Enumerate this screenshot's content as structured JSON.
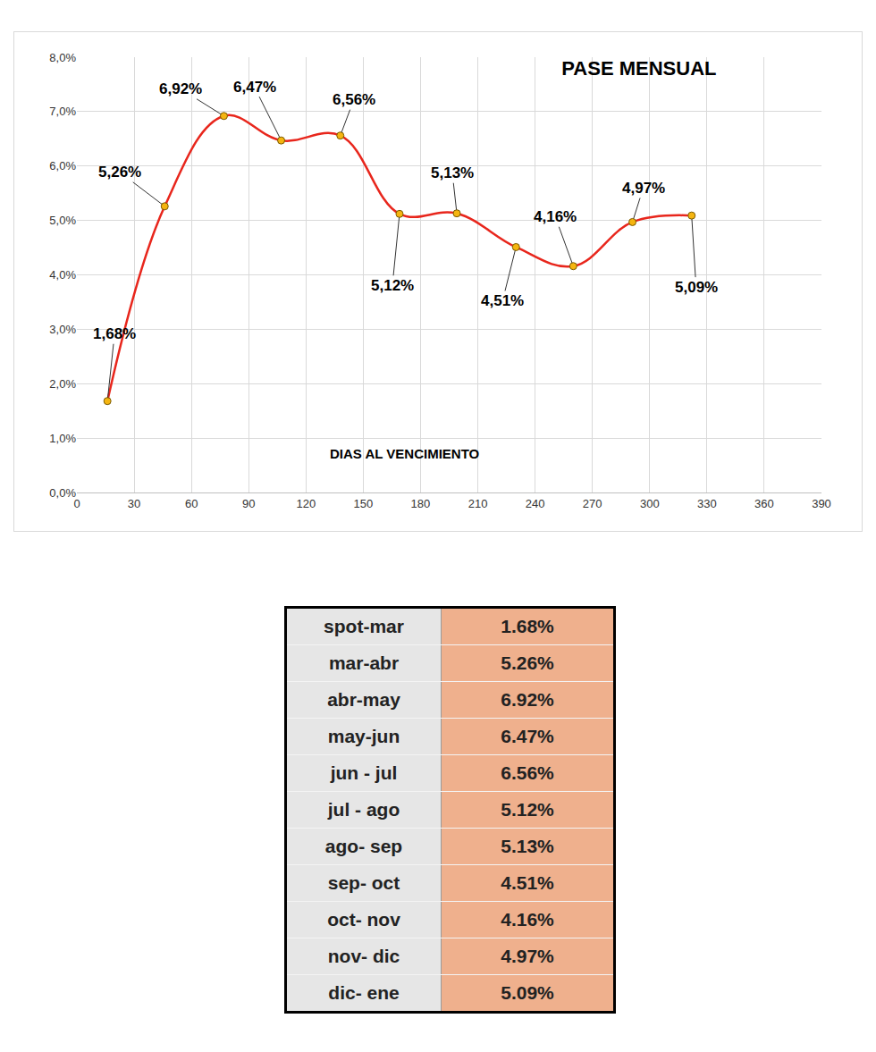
{
  "chart_data": {
    "type": "line",
    "title": "PASE MENSUAL",
    "x_label": "DIAS AL VENCIMIENTO",
    "x": [
      16,
      46,
      77,
      107,
      138,
      169,
      199,
      230,
      260,
      291,
      322
    ],
    "values": [
      1.68,
      5.26,
      6.92,
      6.47,
      6.56,
      5.12,
      5.13,
      4.51,
      4.16,
      4.97,
      5.09
    ],
    "value_labels": [
      "1,68%",
      "5,26%",
      "6,92%",
      "6,47%",
      "6,56%",
      "5,12%",
      "5,13%",
      "4,51%",
      "4,16%",
      "4,97%",
      "5,09%"
    ],
    "color": "#e8261c",
    "marker": "circle",
    "line_style": "spline",
    "data_labels": true,
    "xlim": [
      0,
      390
    ],
    "xticks": [
      0,
      30,
      60,
      90,
      120,
      150,
      180,
      210,
      240,
      270,
      300,
      330,
      360,
      390
    ],
    "ylim": [
      0,
      8
    ],
    "yticks": [
      {
        "value": 0,
        "label": "0,0%"
      },
      {
        "value": 1,
        "label": "1,0%"
      },
      {
        "value": 2,
        "label": "2,0%"
      },
      {
        "value": 3,
        "label": "3,0%"
      },
      {
        "value": 4,
        "label": "4,0%"
      },
      {
        "value": 5,
        "label": "5,0%"
      },
      {
        "value": 6,
        "label": "6,0%"
      },
      {
        "value": 7,
        "label": "7,0%"
      },
      {
        "value": 8,
        "label": "8,0%"
      }
    ],
    "grid": true
  },
  "table": {
    "rows": [
      [
        "spot-mar",
        "1.68%"
      ],
      [
        "mar-abr",
        "5.26%"
      ],
      [
        "abr-may",
        "6.92%"
      ],
      [
        "may-jun",
        "6.47%"
      ],
      [
        "jun - jul",
        "6.56%"
      ],
      [
        "jul - ago",
        "5.12%"
      ],
      [
        "ago- sep",
        "5.13%"
      ],
      [
        "sep- oct",
        "4.51%"
      ],
      [
        "oct- nov",
        "4.16%"
      ],
      [
        "nov- dic",
        "4.97%"
      ],
      [
        "dic- ene",
        "5.09%"
      ]
    ]
  }
}
